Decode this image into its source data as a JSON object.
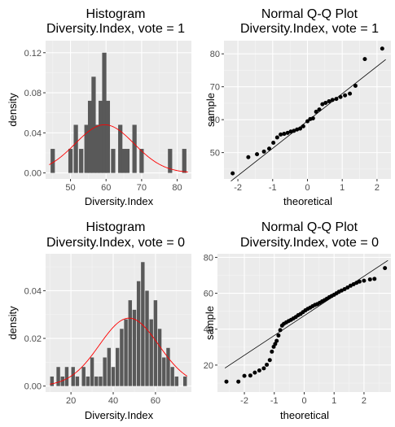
{
  "chart_data": [
    {
      "type": "bar",
      "title": "Histogram",
      "subtitle": "Diversity.Index, vote = 1",
      "xlabel": "Diversity.Index",
      "ylabel": "density",
      "xlim": [
        43,
        84
      ],
      "ylim": [
        -0.006,
        0.132
      ],
      "xticks": [
        50,
        60,
        70,
        80
      ],
      "yticks": [
        0,
        0.04,
        0.08,
        0.12
      ],
      "ytick_labels": [
        "0.00",
        "0.04",
        "0.08",
        "0.12"
      ],
      "grid": true,
      "bars": [
        {
          "x": 45,
          "y": 0.024
        },
        {
          "x": 50,
          "y": 0.024
        },
        {
          "x": 51.5,
          "y": 0.048
        },
        {
          "x": 53,
          "y": 0.024
        },
        {
          "x": 54.5,
          "y": 0.048
        },
        {
          "x": 55.5,
          "y": 0.072
        },
        {
          "x": 56.5,
          "y": 0.096
        },
        {
          "x": 57.5,
          "y": 0.048
        },
        {
          "x": 58.5,
          "y": 0.072
        },
        {
          "x": 59.5,
          "y": 0.12
        },
        {
          "x": 60.5,
          "y": 0.072
        },
        {
          "x": 62,
          "y": 0.024
        },
        {
          "x": 64,
          "y": 0.048
        },
        {
          "x": 65,
          "y": 0.024
        },
        {
          "x": 66,
          "y": 0.024
        },
        {
          "x": 68,
          "y": 0.048
        },
        {
          "x": 70,
          "y": 0.024
        },
        {
          "x": 78,
          "y": 0.024
        },
        {
          "x": 82,
          "y": 0.024
        }
      ],
      "bin_width": 1.2,
      "bar_color": "#595959",
      "curve": {
        "type": "normal",
        "mean": 59.6,
        "sd": 8.3,
        "color": "#ff0000"
      }
    },
    {
      "type": "scatter",
      "title": "Normal Q-Q Plot",
      "subtitle": "Diversity.Index, vote = 1",
      "xlabel": "theoretical",
      "ylabel": "sample",
      "xlim": [
        -2.4,
        2.4
      ],
      "ylim": [
        42,
        84
      ],
      "xticks": [
        -2,
        -1,
        0,
        1,
        2
      ],
      "yticks": [
        50,
        60,
        70,
        80
      ],
      "grid": true,
      "points": [
        [
          -2.15,
          43.7
        ],
        [
          -1.7,
          48.6
        ],
        [
          -1.45,
          49.5
        ],
        [
          -1.25,
          50.3
        ],
        [
          -1.1,
          51.2
        ],
        [
          -0.98,
          53.0
        ],
        [
          -0.87,
          54.6
        ],
        [
          -0.77,
          55.5
        ],
        [
          -0.67,
          55.7
        ],
        [
          -0.57,
          56.0
        ],
        [
          -0.48,
          56.4
        ],
        [
          -0.39,
          56.6
        ],
        [
          -0.3,
          57.0
        ],
        [
          -0.21,
          57.3
        ],
        [
          -0.12,
          58.0
        ],
        [
          0.0,
          59.5
        ],
        [
          0.08,
          60.2
        ],
        [
          0.16,
          60.4
        ],
        [
          0.25,
          62.4
        ],
        [
          0.34,
          63.1
        ],
        [
          0.43,
          64.7
        ],
        [
          0.52,
          65.1
        ],
        [
          0.62,
          65.6
        ],
        [
          0.72,
          66.0
        ],
        [
          0.83,
          66.3
        ],
        [
          0.95,
          66.9
        ],
        [
          1.08,
          67.4
        ],
        [
          1.22,
          67.9
        ],
        [
          1.38,
          70.3
        ],
        [
          1.65,
          78.4
        ],
        [
          2.15,
          81.6
        ]
      ],
      "ref_line": {
        "intercept": 59.6,
        "slope": 8.3
      },
      "point_color": "#000000"
    },
    {
      "type": "bar",
      "title": "Histogram",
      "subtitle": "Diversity.Index, vote = 0",
      "xlabel": "Diversity.Index",
      "ylabel": "density",
      "xlim": [
        8,
        77
      ],
      "ylim": [
        -0.0025,
        0.0555
      ],
      "xticks": [
        20,
        40,
        60
      ],
      "yticks": [
        0,
        0.02,
        0.04
      ],
      "ytick_labels": [
        "0.00",
        "0.02",
        "0.04"
      ],
      "grid": true,
      "bars": [
        {
          "x": 11,
          "y": 0.004
        },
        {
          "x": 14,
          "y": 0.008
        },
        {
          "x": 16,
          "y": 0.004
        },
        {
          "x": 18,
          "y": 0.008
        },
        {
          "x": 21,
          "y": 0.008
        },
        {
          "x": 23,
          "y": 0.004
        },
        {
          "x": 26,
          "y": 0.008
        },
        {
          "x": 28,
          "y": 0.004
        },
        {
          "x": 30,
          "y": 0.012
        },
        {
          "x": 32,
          "y": 0.004
        },
        {
          "x": 34,
          "y": 0.004
        },
        {
          "x": 36,
          "y": 0.012
        },
        {
          "x": 38,
          "y": 0.016
        },
        {
          "x": 40,
          "y": 0.008
        },
        {
          "x": 42,
          "y": 0.016
        },
        {
          "x": 44,
          "y": 0.024
        },
        {
          "x": 46,
          "y": 0.028
        },
        {
          "x": 48,
          "y": 0.036
        },
        {
          "x": 50,
          "y": 0.032
        },
        {
          "x": 52,
          "y": 0.044
        },
        {
          "x": 54,
          "y": 0.052
        },
        {
          "x": 56,
          "y": 0.04
        },
        {
          "x": 58,
          "y": 0.028
        },
        {
          "x": 60,
          "y": 0.036
        },
        {
          "x": 62,
          "y": 0.024
        },
        {
          "x": 64,
          "y": 0.012
        },
        {
          "x": 66,
          "y": 0.016
        },
        {
          "x": 68,
          "y": 0.008
        },
        {
          "x": 70,
          "y": 0.004
        },
        {
          "x": 74,
          "y": 0.004
        }
      ],
      "bin_width": 1.7,
      "bar_color": "#595959",
      "curve": {
        "type": "normal",
        "mean": 47.5,
        "sd": 14.0,
        "color": "#ff0000"
      }
    },
    {
      "type": "scatter",
      "title": "Normal Q-Q Plot",
      "subtitle": "Diversity.Index, vote = 0",
      "xlabel": "theoretical",
      "ylabel": "sample",
      "xlim": [
        -2.9,
        2.9
      ],
      "ylim": [
        5,
        82
      ],
      "xticks": [
        -2,
        -1,
        0,
        1,
        2
      ],
      "yticks": [
        20,
        40,
        60,
        80
      ],
      "grid": true,
      "points": [
        [
          -2.6,
          10.8
        ],
        [
          -2.2,
          10.8
        ],
        [
          -2.0,
          14.0
        ],
        [
          -1.8,
          14.2
        ],
        [
          -1.65,
          15.8
        ],
        [
          -1.5,
          17.0
        ],
        [
          -1.35,
          18.2
        ],
        [
          -1.25,
          20.2
        ],
        [
          -1.15,
          22.8
        ],
        [
          -1.08,
          27.5
        ],
        [
          -1.02,
          30.2
        ],
        [
          -0.97,
          31.8
        ],
        [
          -0.92,
          33.5
        ],
        [
          -0.86,
          36.5
        ],
        [
          -0.8,
          39.5
        ],
        [
          -0.74,
          42.0
        ],
        [
          -0.68,
          43.0
        ],
        [
          -0.6,
          43.8
        ],
        [
          -0.52,
          44.5
        ],
        [
          -0.44,
          45.2
        ],
        [
          -0.36,
          46.0
        ],
        [
          -0.28,
          46.8
        ],
        [
          -0.2,
          47.8
        ],
        [
          -0.12,
          48.5
        ],
        [
          -0.04,
          49.5
        ],
        [
          0.04,
          50.5
        ],
        [
          0.12,
          51.3
        ],
        [
          0.2,
          52.0
        ],
        [
          0.28,
          52.8
        ],
        [
          0.36,
          53.5
        ],
        [
          0.44,
          54.0
        ],
        [
          0.52,
          54.7
        ],
        [
          0.6,
          55.5
        ],
        [
          0.68,
          56.2
        ],
        [
          0.76,
          57.0
        ],
        [
          0.84,
          57.8
        ],
        [
          0.92,
          58.5
        ],
        [
          1.0,
          59.2
        ],
        [
          1.08,
          60.0
        ],
        [
          1.16,
          60.8
        ],
        [
          1.25,
          61.5
        ],
        [
          1.35,
          62.3
        ],
        [
          1.45,
          63.2
        ],
        [
          1.55,
          64.2
        ],
        [
          1.65,
          65.0
        ],
        [
          1.75,
          65.8
        ],
        [
          1.85,
          66.5
        ],
        [
          2.0,
          67.0
        ],
        [
          2.2,
          67.7
        ],
        [
          2.35,
          68.0
        ],
        [
          2.7,
          74.0
        ]
      ],
      "ref_line": {
        "intercept": 47.5,
        "slope": 11.0
      },
      "point_color": "#000000"
    }
  ],
  "style": {
    "panel_bg": "#ebebeb",
    "grid_major": "#ffffff",
    "tick_text": "#4d4d4d",
    "tick_mark": "#333333"
  }
}
